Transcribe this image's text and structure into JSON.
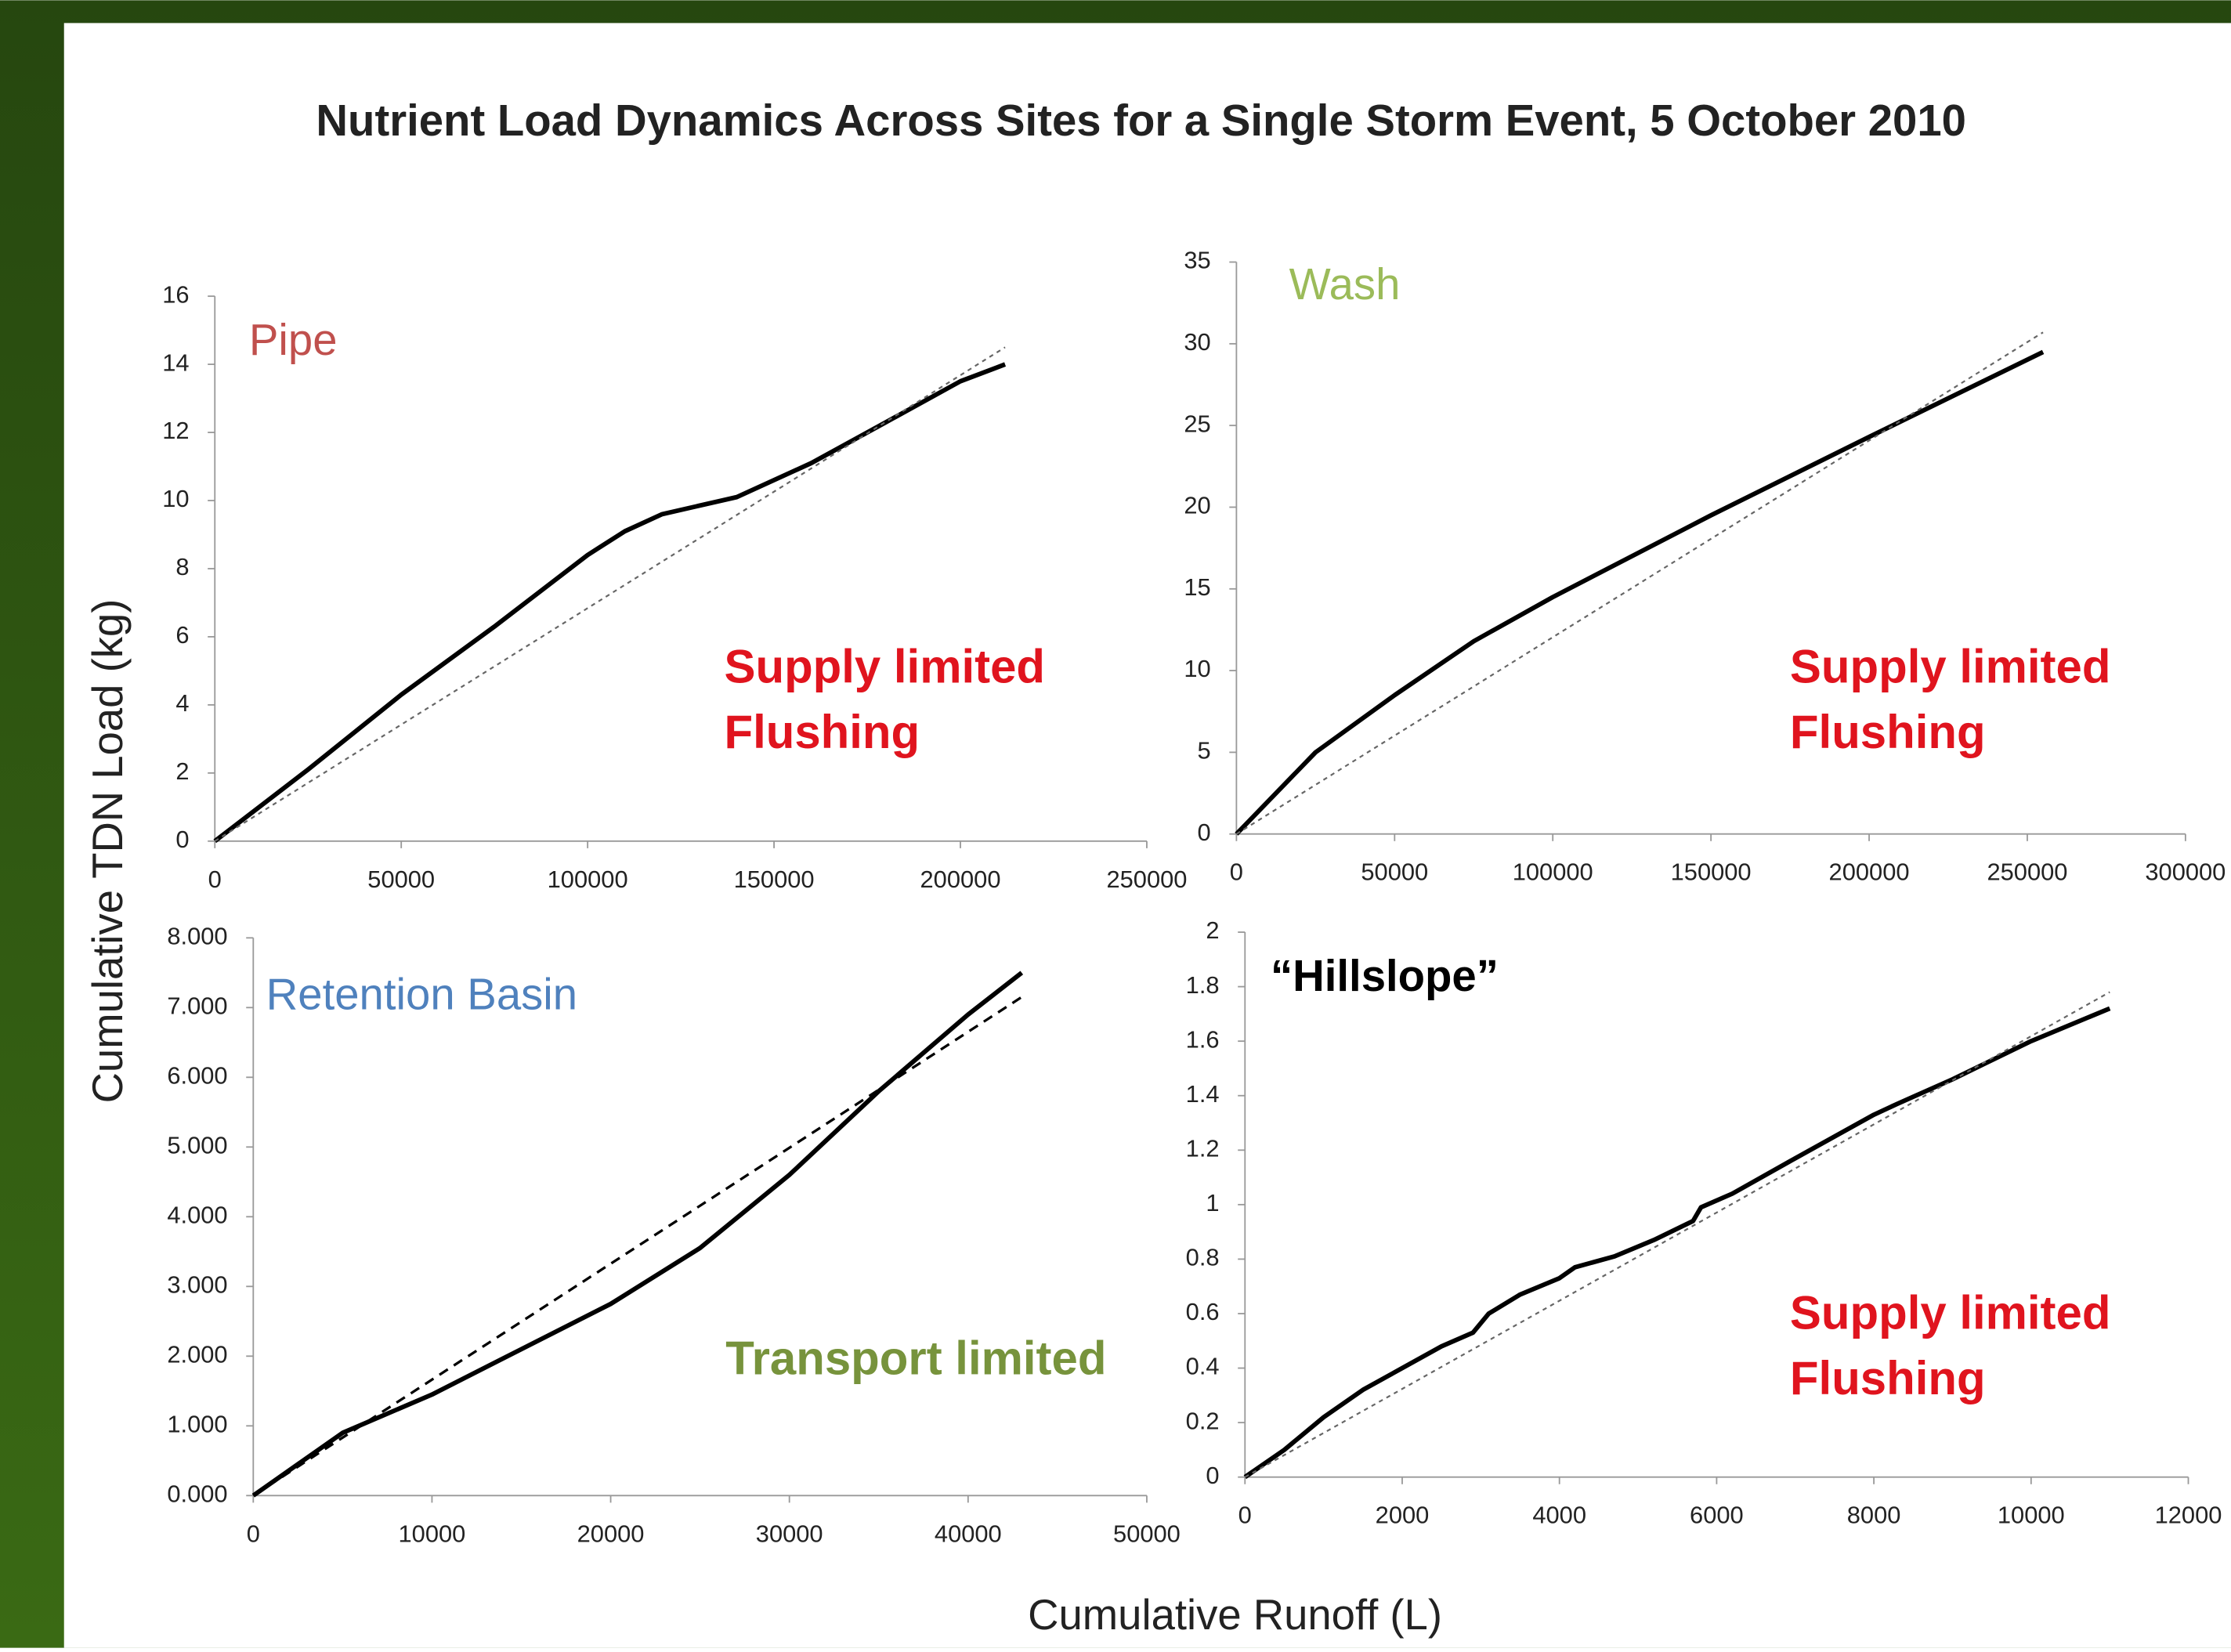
{
  "title": "Nutrient Load Dynamics Across Sites for a Single Storm Event, 5 October 2010",
  "y_label": "Cumulative TDN Load (kg)",
  "x_label": "Cumulative Runoff (L)",
  "chart_data": [
    {
      "type": "line",
      "title": "Pipe",
      "title_color": "#c0504d",
      "annotations": [
        "Supply limited",
        "Flushing"
      ],
      "annotation_color": "#e0141e",
      "xlim": [
        0,
        250000
      ],
      "xticks": [
        0,
        50000,
        100000,
        150000,
        200000,
        250000
      ],
      "ylim": [
        0,
        16
      ],
      "yticks": [
        0,
        2,
        4,
        6,
        8,
        10,
        12,
        14,
        16
      ],
      "series": [
        {
          "color": "#000000",
          "dashed": false,
          "x": [
            0,
            25000,
            50000,
            75000,
            100000,
            110000,
            120000,
            140000,
            160000,
            180000,
            200000,
            212000
          ],
          "values": [
            0,
            2.1,
            4.3,
            6.3,
            8.4,
            9.1,
            9.6,
            10.1,
            11.1,
            12.3,
            13.5,
            14.0
          ]
        },
        {
          "color": "#666666",
          "dashed": true,
          "x": [
            0,
            212000
          ],
          "values": [
            0,
            14.5
          ]
        }
      ]
    },
    {
      "type": "line",
      "title": "Wash",
      "title_color": "#9bbb59",
      "annotations": [
        "Supply limited",
        "Flushing"
      ],
      "annotation_color": "#e0141e",
      "xlim": [
        0,
        300000
      ],
      "xticks": [
        0,
        50000,
        100000,
        150000,
        200000,
        250000,
        300000
      ],
      "ylim": [
        0,
        35
      ],
      "yticks": [
        0,
        5,
        10,
        15,
        20,
        25,
        30,
        35
      ],
      "series": [
        {
          "color": "#000000",
          "dashed": false,
          "x": [
            0,
            25000,
            50000,
            75000,
            100000,
            150000,
            200000,
            255000
          ],
          "values": [
            0,
            5,
            8.5,
            11.8,
            14.5,
            19.5,
            24.3,
            29.5
          ]
        },
        {
          "color": "#666666",
          "dashed": true,
          "x": [
            0,
            255000
          ],
          "values": [
            0,
            30.7
          ]
        }
      ]
    },
    {
      "type": "line",
      "title": "Retention Basin",
      "title_color": "#4f81bd",
      "annotations": [
        "Transport limited"
      ],
      "annotation_color": "#77933c",
      "xlim": [
        0,
        50000
      ],
      "xticks": [
        0,
        10000,
        20000,
        30000,
        40000,
        50000
      ],
      "ylim": [
        0,
        8
      ],
      "yticks": [
        {
          "value": 0,
          "label": "0.000"
        },
        {
          "value": 1,
          "label": "1.000"
        },
        {
          "value": 2,
          "label": "2.000"
        },
        {
          "value": 3,
          "label": "3.000"
        },
        {
          "value": 4,
          "label": "4.000"
        },
        {
          "value": 5,
          "label": "5.000"
        },
        {
          "value": 6,
          "label": "6.000"
        },
        {
          "value": 7,
          "label": "7.000"
        },
        {
          "value": 8,
          "label": "8.000"
        }
      ],
      "series": [
        {
          "color": "#000000",
          "dashed": false,
          "x": [
            0,
            5000,
            10000,
            15000,
            20000,
            25000,
            30000,
            35000,
            40000,
            43000
          ],
          "values": [
            0,
            0.9,
            1.45,
            2.1,
            2.75,
            3.55,
            4.6,
            5.8,
            6.9,
            7.5
          ]
        },
        {
          "color": "#000000",
          "dashed": true,
          "x": [
            0,
            43000
          ],
          "values": [
            0,
            7.15
          ]
        }
      ]
    },
    {
      "type": "line",
      "title": "“Hillslope”",
      "title_color": "#000000",
      "annotations": [
        "Supply limited",
        "Flushing"
      ],
      "annotation_color": "#e0141e",
      "xlim": [
        0,
        12000
      ],
      "xticks": [
        0,
        2000,
        4000,
        6000,
        8000,
        10000,
        12000
      ],
      "ylim": [
        0,
        2
      ],
      "yticks": [
        0,
        0.2,
        0.4,
        0.6,
        0.8,
        1,
        1.2,
        1.4,
        1.6,
        1.8,
        2
      ],
      "series": [
        {
          "color": "#000000",
          "dashed": false,
          "x": [
            0,
            500,
            1000,
            1500,
            2000,
            2500,
            2900,
            3100,
            3500,
            4000,
            4200,
            4700,
            5200,
            5700,
            5800,
            6200,
            7000,
            8000,
            8300,
            9000,
            10000,
            11000
          ],
          "values": [
            0,
            0.1,
            0.22,
            0.32,
            0.4,
            0.48,
            0.53,
            0.6,
            0.67,
            0.73,
            0.77,
            0.81,
            0.87,
            0.94,
            0.99,
            1.04,
            1.17,
            1.33,
            1.37,
            1.46,
            1.6,
            1.72
          ]
        },
        {
          "color": "#666666",
          "dashed": true,
          "x": [
            0,
            11000
          ],
          "values": [
            0,
            1.78
          ]
        }
      ]
    }
  ]
}
